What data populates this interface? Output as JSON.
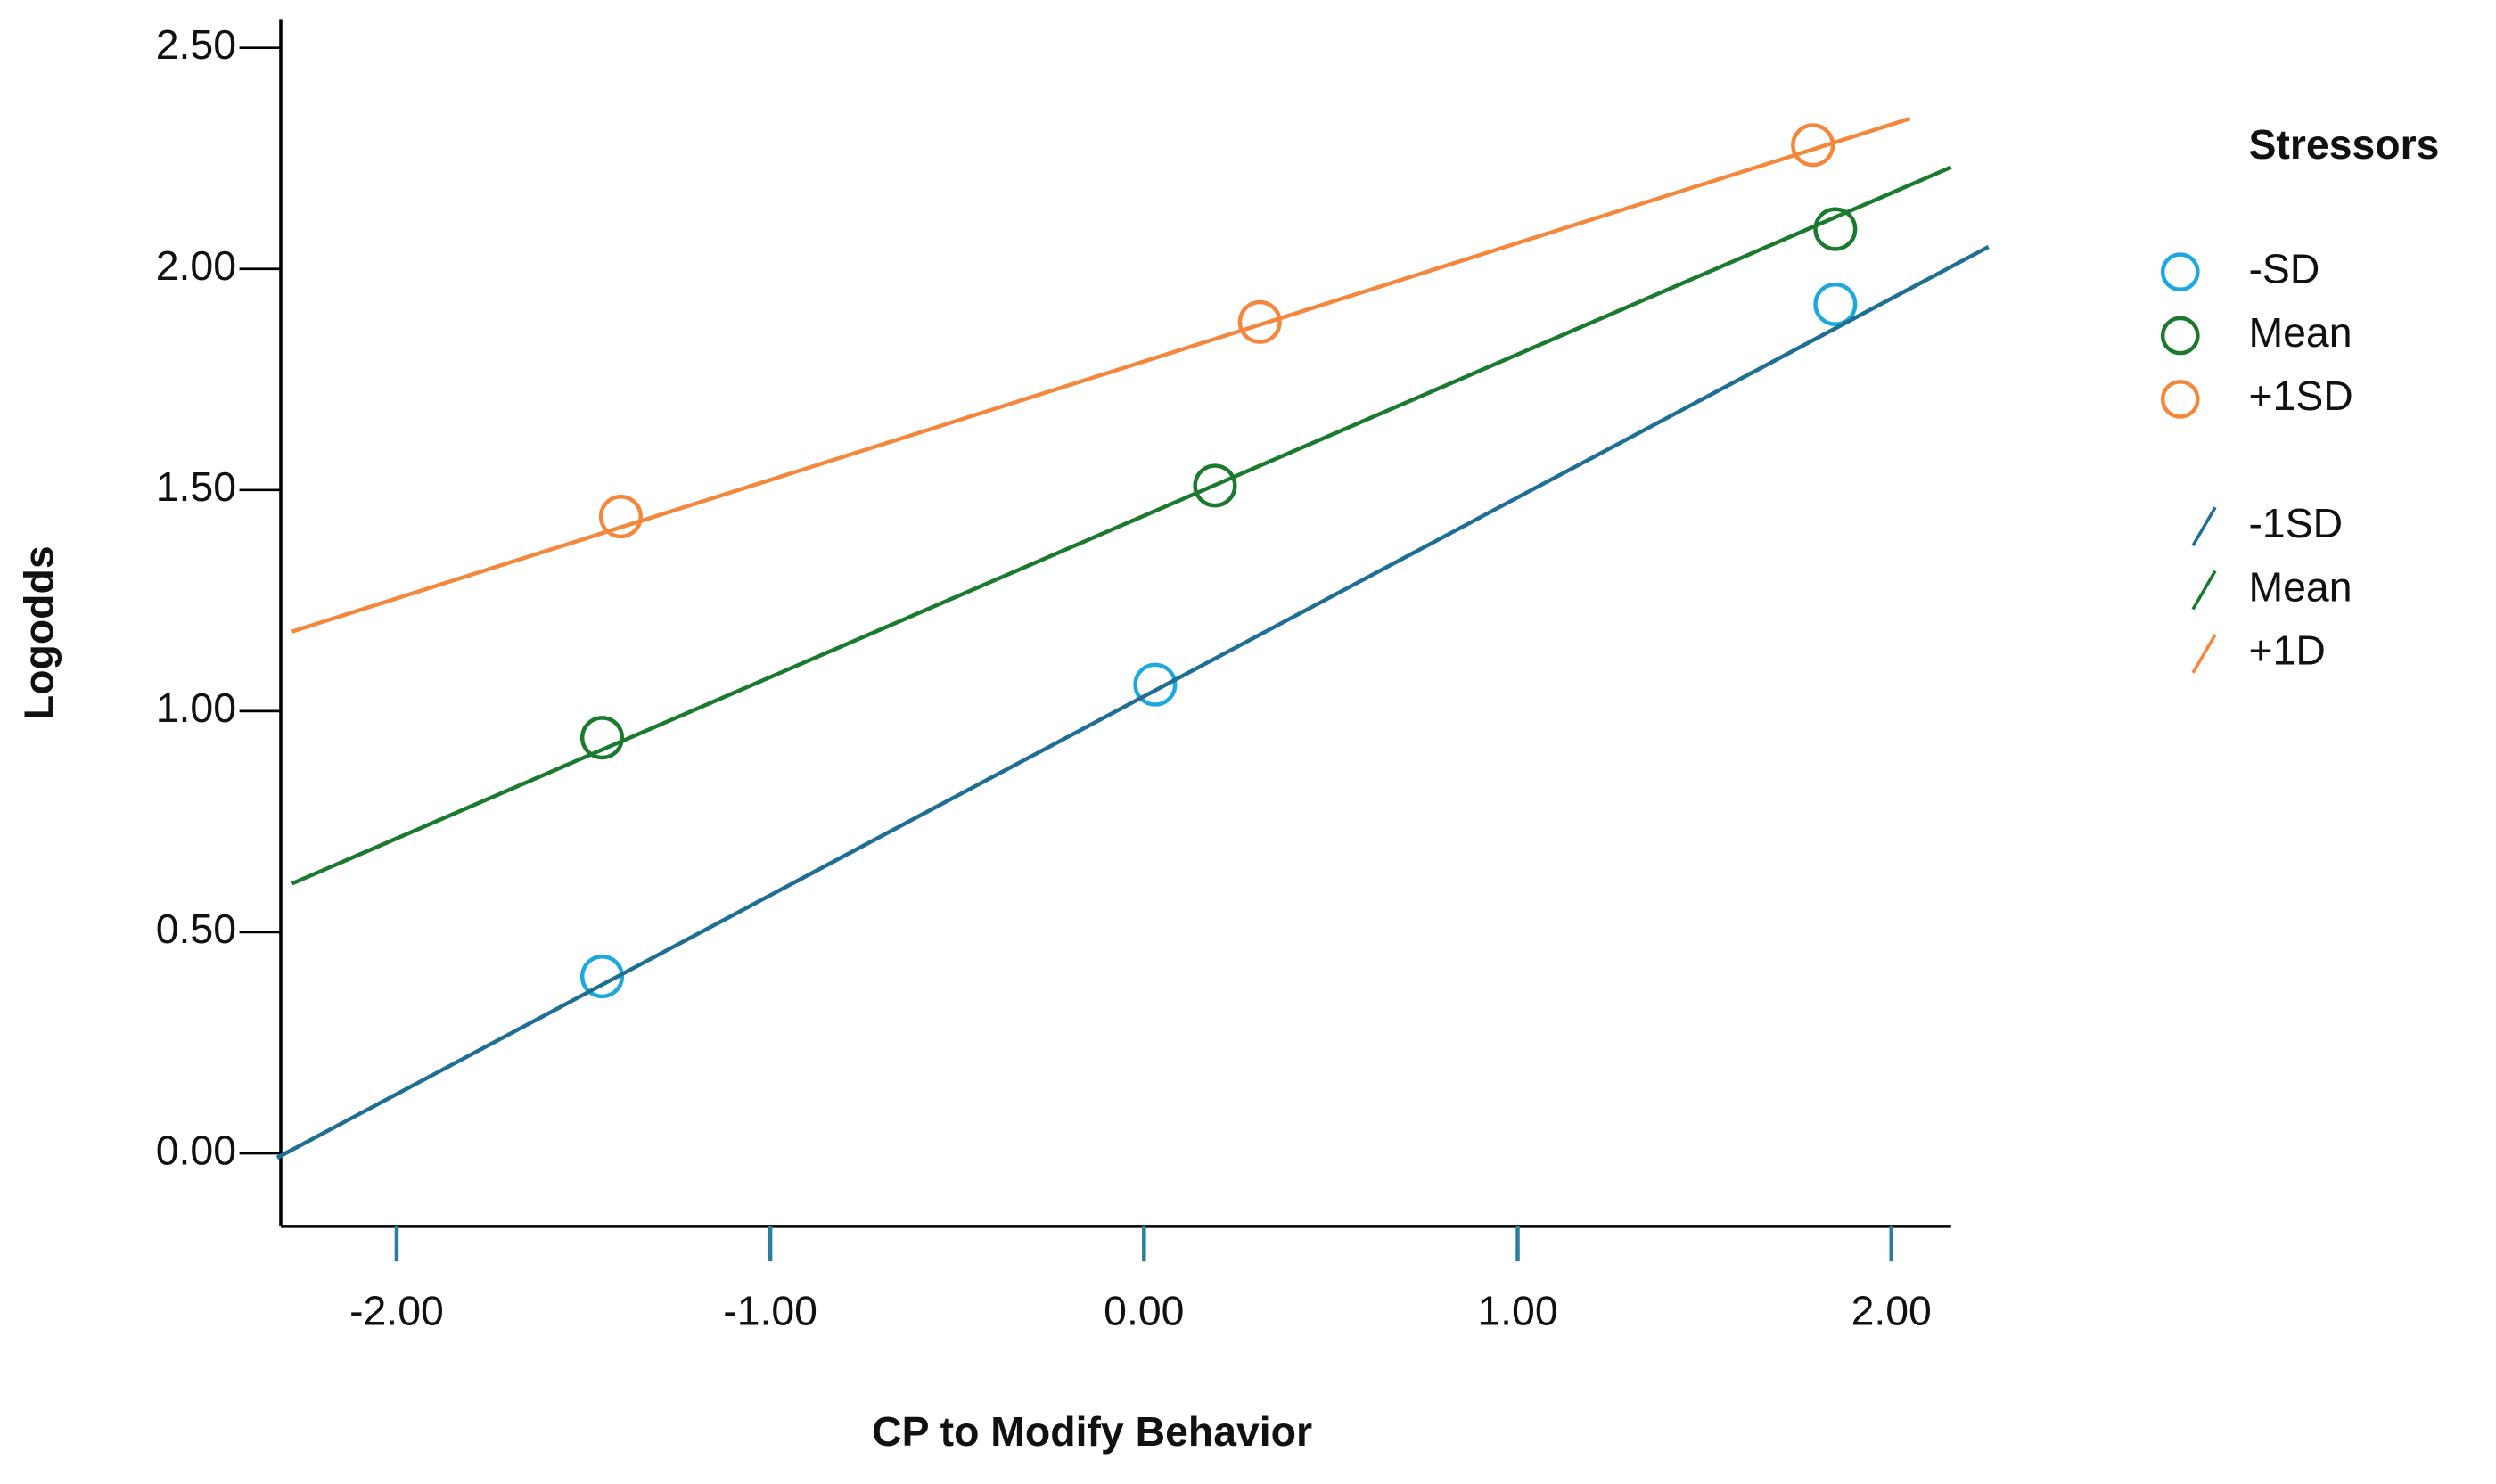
{
  "chart_data": {
    "type": "scatter",
    "xlabel": "CP to Modify Behavior",
    "ylabel": "Logodds",
    "legend_title": "Stressors",
    "legend": "right",
    "xlim": [
      -2.31,
      2.16
    ],
    "ylim": [
      -0.165,
      2.565
    ],
    "xticks": [
      {
        "value": -2,
        "label": "-2.00"
      },
      {
        "value": -1,
        "label": "-1.00"
      },
      {
        "value": 0,
        "label": "0.00"
      },
      {
        "value": 1,
        "label": "1.00"
      },
      {
        "value": 2,
        "label": "2.00"
      }
    ],
    "yticks": [
      {
        "value": 0,
        "label": "0.00"
      },
      {
        "value": 0.5,
        "label": "0.50"
      },
      {
        "value": 1,
        "label": "1.00"
      },
      {
        "value": 1.5,
        "label": "1.50"
      },
      {
        "value": 2,
        "label": "2.00"
      },
      {
        "value": 2.5,
        "label": "2.50"
      }
    ],
    "series": [
      {
        "name": "-SD",
        "type": "scatter",
        "color": "#1ba9e0",
        "x": [
          -1.45,
          0.03,
          1.85
        ],
        "values": [
          0.4,
          1.06,
          1.92
        ]
      },
      {
        "name": "Mean",
        "type": "scatter",
        "color": "#1a7a2e",
        "x": [
          -1.45,
          0.19,
          1.85
        ],
        "values": [
          0.94,
          1.51,
          2.09
        ]
      },
      {
        "name": "+1SD",
        "type": "scatter",
        "color": "#f5873d",
        "x": [
          -1.4,
          0.31,
          1.79
        ],
        "values": [
          1.44,
          1.88,
          2.28
        ]
      },
      {
        "name": "-1SD",
        "type": "line",
        "color": "#1f6e94",
        "x": [
          -2.32,
          2.26
        ],
        "values": [
          -0.01,
          2.05
        ]
      },
      {
        "name": "Mean",
        "type": "line",
        "color": "#1a7a2e",
        "x": [
          -2.28,
          2.16
        ],
        "values": [
          0.61,
          2.23
        ]
      },
      {
        "name": "+1D",
        "type": "line",
        "color": "#f5873d",
        "x": [
          -2.28,
          2.05
        ],
        "values": [
          1.18,
          2.34
        ]
      }
    ]
  }
}
